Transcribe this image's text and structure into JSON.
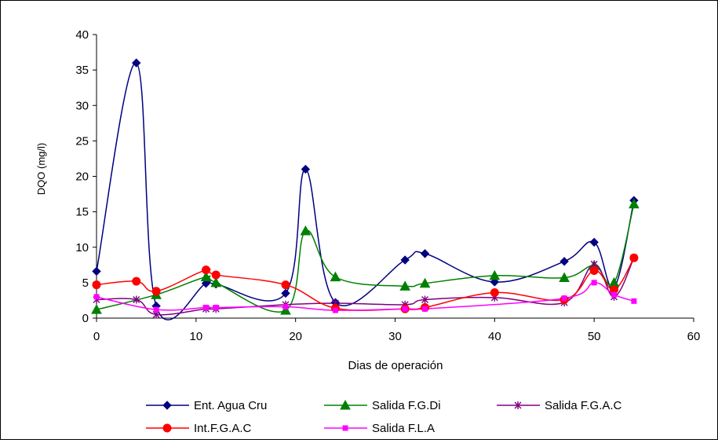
{
  "chart_data": {
    "type": "line",
    "title": "",
    "xlabel": "Dias de operación",
    "ylabel": "DQO (mg/l)",
    "xlim": [
      0,
      60
    ],
    "ylim": [
      0,
      40
    ],
    "xticks": [
      0,
      10,
      20,
      30,
      40,
      50,
      60
    ],
    "yticks": [
      0,
      5,
      10,
      15,
      20,
      25,
      30,
      35,
      40
    ],
    "grid": false,
    "legend_position": "bottom",
    "series": [
      {
        "name": "Ent. Agua Cru",
        "color": "#000080",
        "marker": "diamond",
        "points": [
          [
            0,
            6.6
          ],
          [
            4,
            36
          ],
          [
            6,
            1.7
          ],
          [
            11,
            4.9
          ],
          [
            12,
            4.8
          ],
          [
            19,
            3.5
          ],
          [
            21,
            21
          ],
          [
            24,
            2.2
          ],
          [
            31,
            8.2
          ],
          [
            33,
            9.1
          ],
          [
            40,
            5.1
          ],
          [
            47,
            8.0
          ],
          [
            50,
            10.7
          ],
          [
            52,
            4.3
          ],
          [
            54,
            16.6
          ]
        ]
      },
      {
        "name": "Salida F.G.Di",
        "color": "#008000",
        "marker": "triangle",
        "points": [
          [
            0,
            1.2
          ],
          [
            6,
            3.3
          ],
          [
            11,
            5.8
          ],
          [
            12,
            5.0
          ],
          [
            19,
            1.1
          ],
          [
            21,
            12.3
          ],
          [
            24,
            5.8
          ],
          [
            31,
            4.5
          ],
          [
            33,
            4.9
          ],
          [
            40,
            6.0
          ],
          [
            47,
            5.7
          ],
          [
            50,
            7.4
          ],
          [
            52,
            5.0
          ],
          [
            54,
            16.1
          ]
        ]
      },
      {
        "name": "Salida F.G.A.C",
        "color": "#800080",
        "marker": "star",
        "points": [
          [
            0,
            2.6
          ],
          [
            4,
            2.6
          ],
          [
            6,
            0.5
          ],
          [
            11,
            1.3
          ],
          [
            12,
            1.3
          ],
          [
            19,
            1.9
          ],
          [
            24,
            2.1
          ],
          [
            31,
            1.9
          ],
          [
            33,
            2.6
          ],
          [
            40,
            2.9
          ],
          [
            47,
            2.2
          ],
          [
            50,
            7.6
          ],
          [
            52,
            3.0
          ],
          [
            54,
            8.5
          ]
        ]
      },
      {
        "name": "Int.F.G.A.C",
        "color": "#ff0000",
        "marker": "circle",
        "points": [
          [
            0,
            4.7
          ],
          [
            4,
            5.2
          ],
          [
            6,
            3.8
          ],
          [
            11,
            6.8
          ],
          [
            12,
            6.1
          ],
          [
            19,
            4.7
          ],
          [
            24,
            1.4
          ],
          [
            31,
            1.3
          ],
          [
            33,
            1.5
          ],
          [
            40,
            3.6
          ],
          [
            47,
            2.6
          ],
          [
            50,
            6.7
          ],
          [
            52,
            4.0
          ],
          [
            54,
            8.5
          ]
        ]
      },
      {
        "name": "Salida F.L.A",
        "color": "#ff00ff",
        "marker": "square",
        "points": [
          [
            0,
            3.0
          ],
          [
            6,
            1.2
          ],
          [
            11,
            1.5
          ],
          [
            12,
            1.5
          ],
          [
            19,
            1.6
          ],
          [
            24,
            1.1
          ],
          [
            31,
            1.3
          ],
          [
            33,
            1.3
          ],
          [
            47,
            2.8
          ],
          [
            50,
            5.0
          ],
          [
            52,
            3.3
          ],
          [
            54,
            2.4
          ]
        ]
      }
    ]
  }
}
